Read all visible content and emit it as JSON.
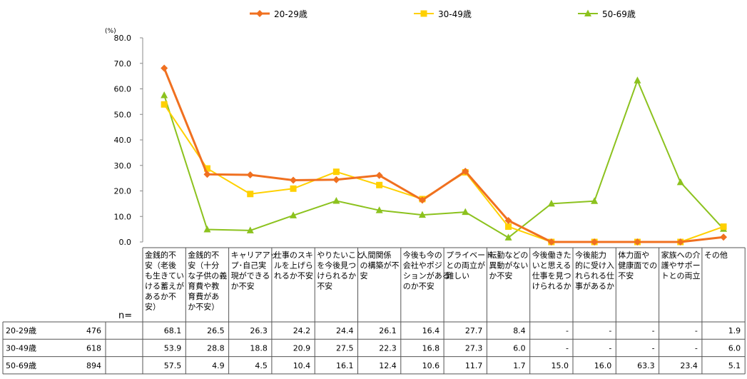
{
  "chart_data": {
    "type": "line",
    "unit_label": "(%)",
    "ylim": [
      0,
      80
    ],
    "yticks": [
      "80.0",
      "70.0",
      "60.0",
      "50.0",
      "40.0",
      "30.0",
      "20.0",
      "10.0",
      "0.0"
    ],
    "grid": false,
    "legend_position": "top",
    "n_label": "n=",
    "categories": [
      [
        "金銭的不",
        "安（老後",
        "も生きてい",
        "ける蓄えが",
        "あるか不",
        "安）"
      ],
      [
        "金銭的不",
        "安（十分",
        "な子供の義",
        "育費や教",
        "育費があ",
        "か不安）"
      ],
      [
        "キャリアアッ",
        "プ･自己実",
        "現ができる",
        "か不安"
      ],
      [
        "仕事のスキ",
        "ルを上げら",
        "れるか不安"
      ],
      [
        "やりたいこと",
        "を今後見つ",
        "けられるか",
        "不安"
      ],
      [
        "人間関係",
        "の構築が不",
        "安"
      ],
      [
        "今後も今の",
        "会社やポジ",
        "ションがある",
        "のか不安"
      ],
      [
        "プライベート",
        "との両立が",
        "難しい"
      ],
      [
        "転勤などの",
        "異動がない",
        "か不安"
      ],
      [
        "今後働きた",
        "いと思える",
        "仕事を見つ",
        "けられるか"
      ],
      [
        "今後能力",
        "的に受け入",
        "れられる仕",
        "事があるか"
      ],
      [
        "体力面や",
        "健康面での",
        "不安"
      ],
      [
        "家族への介",
        "護やサポー",
        "トとの両立"
      ],
      [
        "その他"
      ]
    ],
    "series": [
      {
        "name": "20-29歳",
        "color": "#F07020",
        "marker": "diamond",
        "n": "476",
        "values": [
          68.1,
          26.5,
          26.3,
          24.2,
          24.4,
          26.1,
          16.4,
          27.7,
          8.4,
          0,
          0,
          0,
          0,
          1.9
        ],
        "labels": [
          "68.1",
          "26.5",
          "26.3",
          "24.2",
          "24.4",
          "26.1",
          "16.4",
          "27.7",
          "8.4",
          "-",
          "-",
          "-",
          "-",
          "1.9"
        ]
      },
      {
        "name": "30-49歳",
        "color": "#FFD000",
        "marker": "square",
        "n": "618",
        "values": [
          53.9,
          28.8,
          18.8,
          20.9,
          27.5,
          22.3,
          16.8,
          27.3,
          6.0,
          0,
          0,
          0,
          0,
          6.0
        ],
        "labels": [
          "53.9",
          "28.8",
          "18.8",
          "20.9",
          "27.5",
          "22.3",
          "16.8",
          "27.3",
          "6.0",
          "-",
          "-",
          "-",
          "-",
          "6.0"
        ]
      },
      {
        "name": "50-69歳",
        "color": "#8CC21E",
        "marker": "triangle",
        "n": "894",
        "values": [
          57.5,
          4.9,
          4.5,
          10.4,
          16.1,
          12.4,
          10.6,
          11.7,
          1.7,
          15.0,
          16.0,
          63.3,
          23.4,
          5.1
        ],
        "labels": [
          "57.5",
          "4.9",
          "4.5",
          "10.4",
          "16.1",
          "12.4",
          "10.6",
          "11.7",
          "1.7",
          "15.0",
          "16.0",
          "63.3",
          "23.4",
          "5.1"
        ]
      }
    ]
  }
}
